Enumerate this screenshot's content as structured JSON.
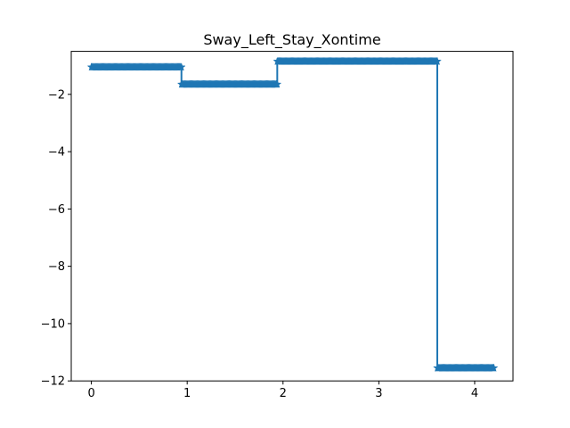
{
  "chart_data": {
    "type": "line",
    "title": "Sway_Left_Stay_Xontime",
    "xlabel": "",
    "ylabel": "",
    "xlim": [
      -0.21,
      4.4
    ],
    "ylim": [
      -12.0,
      -0.5
    ],
    "x_ticks": [
      0,
      1,
      2,
      3,
      4
    ],
    "y_ticks": [
      -12,
      -10,
      -8,
      -6,
      -4,
      -2
    ],
    "y_tick_labels": [
      "−12",
      "−10",
      "−8",
      "−6",
      "−4",
      "−2"
    ],
    "grid": false,
    "legend": "none",
    "marker": "star",
    "series": [
      {
        "color": "#1f77b4",
        "points": [
          [
            0.0,
            -1.05
          ],
          [
            0.94,
            -1.05
          ],
          [
            0.94,
            -1.65
          ],
          [
            1.94,
            -1.65
          ],
          [
            1.94,
            -0.85
          ],
          [
            3.61,
            -0.85
          ],
          [
            3.61,
            -11.55
          ],
          [
            4.2,
            -11.55
          ]
        ]
      }
    ]
  }
}
